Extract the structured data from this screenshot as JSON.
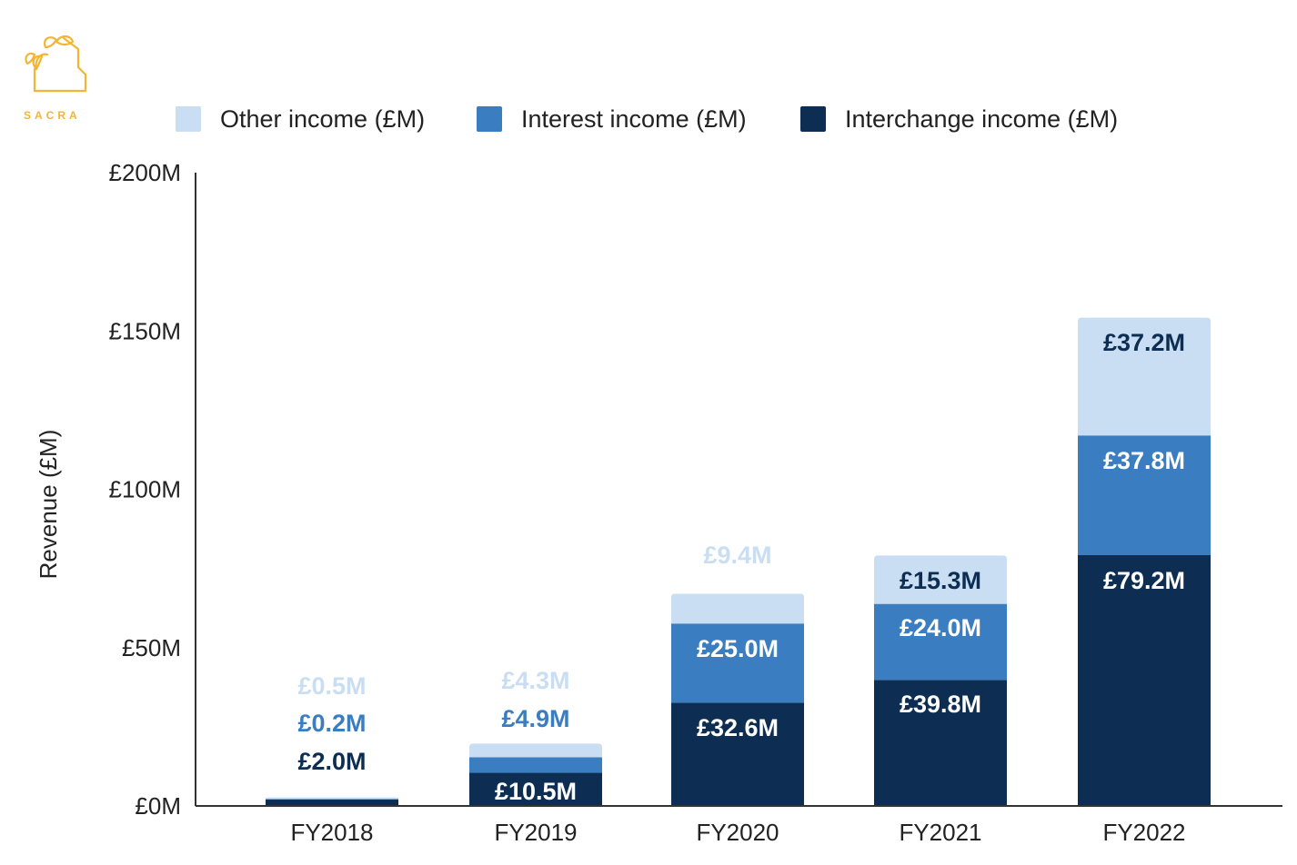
{
  "brand": {
    "name": "SACRA",
    "color": "#F2B632"
  },
  "chart_data": {
    "type": "bar",
    "stacked": true,
    "categories": [
      "FY2018",
      "FY2019",
      "FY2020",
      "FY2021",
      "FY2022"
    ],
    "series": [
      {
        "name": "Interchange income (£M)",
        "color": "#0D2E52",
        "values": [
          2.0,
          10.5,
          32.6,
          39.8,
          79.2
        ],
        "labels": [
          "£2.0M",
          "£10.5M",
          "£32.6M",
          "£39.8M",
          "£79.2M"
        ]
      },
      {
        "name": "Interest income (£M)",
        "color": "#3A7DC0",
        "values": [
          0.2,
          4.9,
          25.0,
          24.0,
          37.8
        ],
        "labels": [
          "£0.2M",
          "£4.9M",
          "£25.0M",
          "£24.0M",
          "£37.8M"
        ]
      },
      {
        "name": "Other income (£M)",
        "color": "#C9DEF2",
        "values": [
          0.5,
          4.3,
          9.4,
          15.3,
          37.2
        ],
        "labels": [
          "£0.5M",
          "£4.3M",
          "£9.4M",
          "£15.3M",
          "£37.2M"
        ]
      }
    ],
    "legend_order": [
      2,
      1,
      0
    ],
    "legend_position": "top",
    "ylabel": "Revenue (£M)",
    "xlabel": "",
    "ylim": [
      0,
      200
    ],
    "yticks": [
      0,
      50,
      100,
      150,
      200
    ],
    "ytick_labels": [
      "£0M",
      "£50M",
      "£100M",
      "£150M",
      "£200M"
    ],
    "grid": false
  }
}
